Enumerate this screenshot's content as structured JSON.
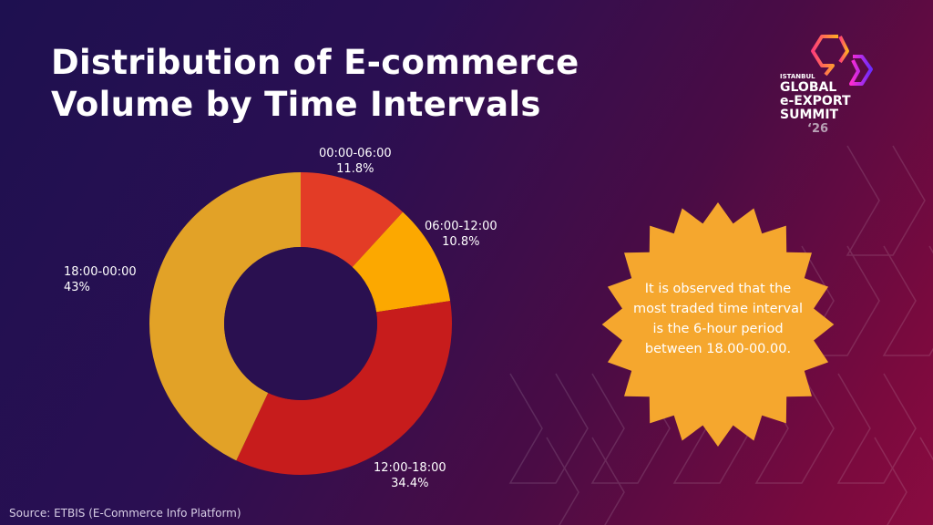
{
  "title_line1": "Distribution of E-commerce",
  "title_line2": "Volume by Time Intervals",
  "logo": {
    "line1": "ISTANBUL",
    "line2": "GLOBAL",
    "line3": "e-EXPORT",
    "line4": "SUMMIT",
    "line5": "‘26"
  },
  "callout": {
    "text": "It is observed that the most traded time interval is the 6-hour period between 18.00-00.00.",
    "color": "#f5a72e"
  },
  "source": "Source: ETBIS (E-Commerce Info Platform)",
  "chart_data": {
    "type": "pie",
    "donut": true,
    "categories": [
      "00:00-06:00",
      "06:00-12:00",
      "12:00-18:00",
      "18:00-00:00"
    ],
    "values": [
      11.8,
      10.8,
      34.4,
      43
    ],
    "value_labels": [
      "11.8%",
      "10.8%",
      "34.4%",
      "43%"
    ],
    "colors": [
      "#e33c26",
      "#fca800",
      "#c71c1c",
      "#e2a227"
    ]
  }
}
